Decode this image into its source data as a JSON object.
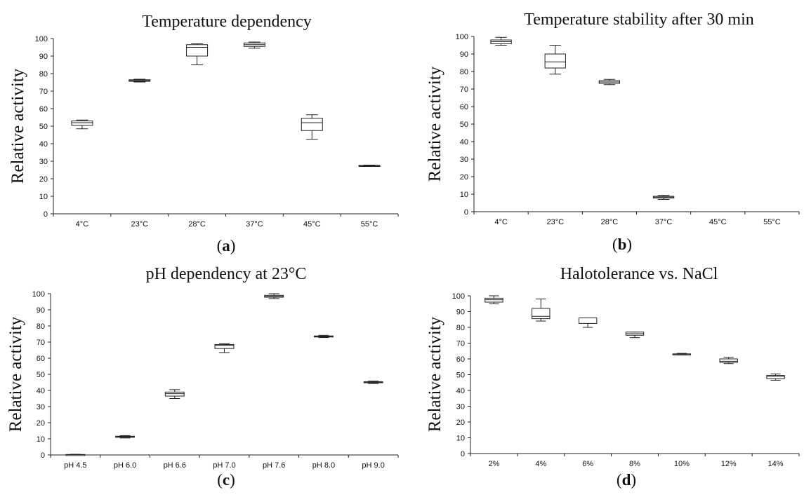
{
  "chart_data": [
    {
      "type": "box",
      "panel": "a",
      "title": "Temperature dependency",
      "ylabel": "Relative activity",
      "xlabel": "",
      "ylim": [
        0,
        100
      ],
      "yticks": [
        0,
        10,
        20,
        30,
        40,
        50,
        60,
        70,
        80,
        90,
        100
      ],
      "categories": [
        "4°C",
        "23°C",
        "28°C",
        "37°C",
        "45°C",
        "55°C"
      ],
      "boxes": [
        {
          "min": 48.5,
          "q1": 50.5,
          "median": 52.0,
          "q3": 53.0,
          "max": 53.5
        },
        {
          "min": 75.2,
          "q1": 75.6,
          "median": 76.0,
          "q3": 76.5,
          "max": 76.8
        },
        {
          "min": 85.0,
          "q1": 90.0,
          "median": 95.0,
          "q3": 96.5,
          "max": 97.0
        },
        {
          "min": 94.5,
          "q1": 95.5,
          "median": 96.5,
          "q3": 97.5,
          "max": 98.0
        },
        {
          "min": 42.5,
          "q1": 47.5,
          "median": 52.0,
          "q3": 54.5,
          "max": 56.5
        },
        {
          "min": 27.0,
          "q1": 27.2,
          "median": 27.4,
          "q3": 27.6,
          "max": 27.8
        }
      ],
      "caption_label": "a"
    },
    {
      "type": "box",
      "panel": "b",
      "title": "Temperature stability after 30 min",
      "ylabel": "Relative activity",
      "xlabel": "",
      "ylim": [
        0,
        100
      ],
      "yticks": [
        0,
        10,
        20,
        30,
        40,
        50,
        60,
        70,
        80,
        90,
        100
      ],
      "categories": [
        "4°C",
        "23°C",
        "28°C",
        "37°C",
        "45°C",
        "55°C"
      ],
      "boxes": [
        {
          "min": 95.0,
          "q1": 95.8,
          "median": 97.0,
          "q3": 98.0,
          "max": 99.5
        },
        {
          "min": 78.5,
          "q1": 82.0,
          "median": 85.5,
          "q3": 90.0,
          "max": 95.0
        },
        {
          "min": 72.5,
          "q1": 73.2,
          "median": 74.0,
          "q3": 74.8,
          "max": 75.5
        },
        {
          "min": 7.0,
          "q1": 7.8,
          "median": 8.3,
          "q3": 8.8,
          "max": 9.3
        },
        null,
        null
      ],
      "caption_label": "b"
    },
    {
      "type": "box",
      "panel": "c",
      "title": "pH dependency at 23°C",
      "ylabel": "Relative activity",
      "xlabel": "",
      "ylim": [
        0,
        100
      ],
      "yticks": [
        0,
        10,
        20,
        30,
        40,
        50,
        60,
        70,
        80,
        90,
        100
      ],
      "categories": [
        "pH 4.5",
        "pH 6.0",
        "pH 6.6",
        "pH 7.0",
        "pH 7.6",
        "pH 8.0",
        "pH 9.0"
      ],
      "boxes": [
        {
          "min": 0.0,
          "q1": 0.0,
          "median": 0.2,
          "q3": 0.3,
          "max": 0.4
        },
        {
          "min": 10.5,
          "q1": 11.0,
          "median": 11.3,
          "q3": 11.6,
          "max": 12.0
        },
        {
          "min": 35.0,
          "q1": 36.5,
          "median": 38.0,
          "q3": 39.0,
          "max": 40.5
        },
        {
          "min": 63.5,
          "q1": 66.0,
          "median": 68.0,
          "q3": 68.5,
          "max": 69.0
        },
        {
          "min": 97.0,
          "q1": 97.8,
          "median": 98.5,
          "q3": 99.0,
          "max": 100.0
        },
        {
          "min": 72.8,
          "q1": 73.2,
          "median": 73.5,
          "q3": 73.8,
          "max": 74.2
        },
        {
          "min": 44.3,
          "q1": 44.8,
          "median": 45.1,
          "q3": 45.4,
          "max": 45.8
        }
      ],
      "caption_label": "c"
    },
    {
      "type": "box",
      "panel": "d",
      "title": "Halotolerance vs. NaCl",
      "ylabel": "Relative activity",
      "xlabel": "",
      "ylim": [
        0,
        100
      ],
      "yticks": [
        0,
        10,
        20,
        30,
        40,
        50,
        60,
        70,
        80,
        90,
        100
      ],
      "categories": [
        "2%",
        "4%",
        "6%",
        "8%",
        "10%",
        "12%",
        "14%"
      ],
      "boxes": [
        {
          "min": 95.0,
          "q1": 96.0,
          "median": 97.5,
          "q3": 98.5,
          "max": 100.0
        },
        {
          "min": 84.0,
          "q1": 85.5,
          "median": 87.0,
          "q3": 92.0,
          "max": 98.0
        },
        {
          "min": 80.0,
          "q1": 82.5,
          "median": 86.0,
          "q3": 86.0,
          "max": 86.0
        },
        {
          "min": 73.5,
          "q1": 75.0,
          "median": 76.0,
          "q3": 77.0,
          "max": 77.0
        },
        {
          "min": 62.5,
          "q1": 62.8,
          "median": 63.0,
          "q3": 63.2,
          "max": 63.5
        },
        {
          "min": 57.0,
          "q1": 57.8,
          "median": 58.5,
          "q3": 60.0,
          "max": 61.0
        },
        {
          "min": 46.5,
          "q1": 47.5,
          "median": 49.0,
          "q3": 49.5,
          "max": 50.5
        }
      ],
      "caption_label": "d"
    }
  ]
}
